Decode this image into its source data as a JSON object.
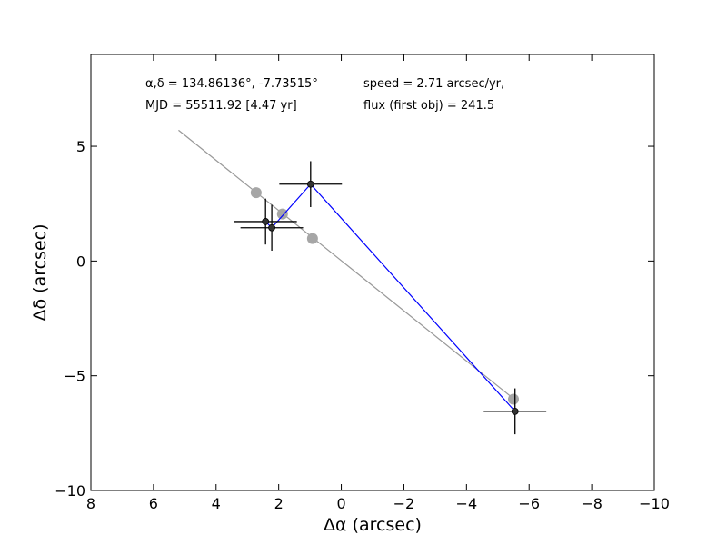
{
  "chart_data": {
    "type": "scatter",
    "xlabel": "Δα (arcsec)",
    "ylabel": "Δδ (arcsec)",
    "xlim": [
      8,
      -10
    ],
    "ylim": [
      -10,
      9
    ],
    "x_ticks": [
      8,
      6,
      4,
      2,
      0,
      -2,
      -4,
      -6,
      -8,
      -10
    ],
    "y_ticks": [
      -10,
      -5,
      0,
      5
    ],
    "x_tick_labels": [
      "8",
      "6",
      "4",
      "2",
      "0",
      "−2",
      "−4",
      "−6",
      "−8",
      "−10"
    ],
    "y_tick_labels": [
      "−10",
      "−5",
      "0",
      "5"
    ],
    "grid": false,
    "annotations": [
      "α,δ = 134.86136°, -7.73515°",
      "speed = 2.71 arcsec/yr,",
      "MJD = 55511.92 [4.47 yr]",
      "flux (first obj) = 241.5"
    ],
    "fit_line": {
      "color": "#999999",
      "x": [
        5.2,
        -5.55
      ],
      "y": [
        5.7,
        -6.05
      ]
    },
    "model_points": {
      "color": "#a6a6a6",
      "x": [
        2.72,
        1.88,
        0.92,
        -5.5
      ],
      "y": [
        2.98,
        2.05,
        0.98,
        -6.02
      ]
    },
    "observations": {
      "color": "#000000",
      "connector_color": "#0000ff",
      "x": [
        2.42,
        2.22,
        0.98,
        -5.55
      ],
      "y": [
        1.72,
        1.45,
        3.35,
        -6.55
      ],
      "xerr": [
        1.0,
        1.0,
        1.0,
        1.0
      ],
      "yerr": [
        1.0,
        1.0,
        1.0,
        1.0
      ]
    }
  }
}
